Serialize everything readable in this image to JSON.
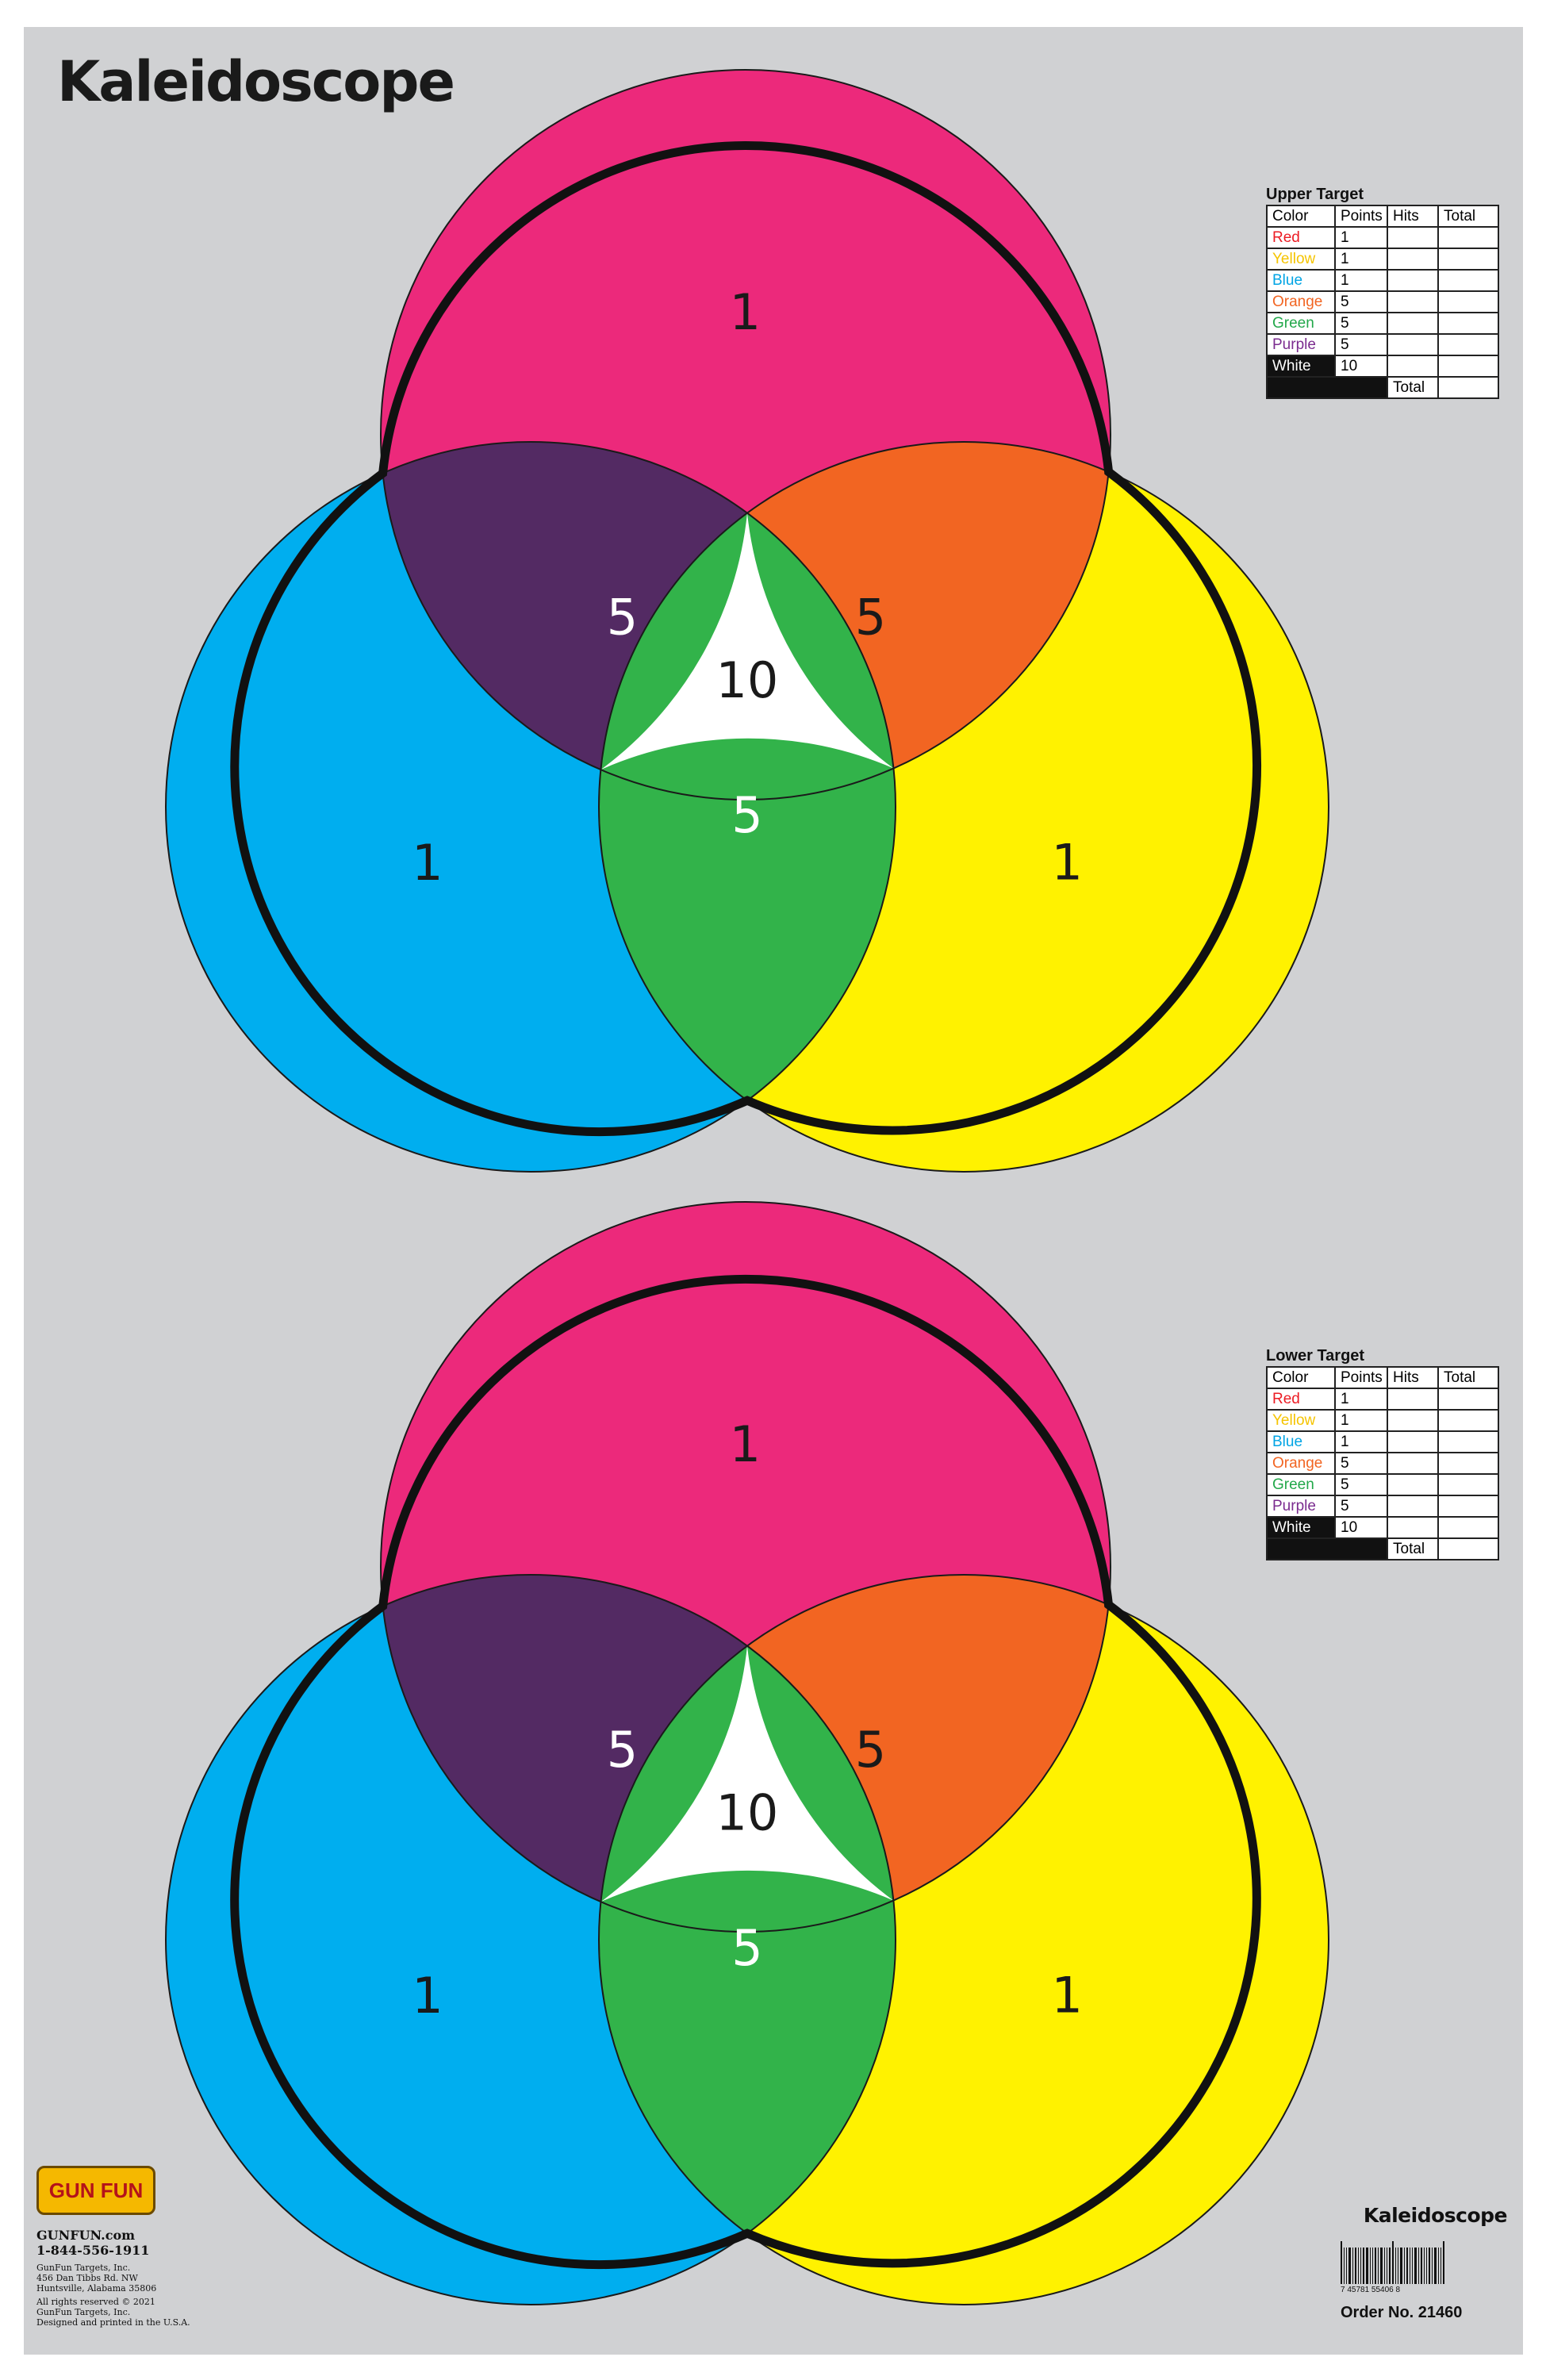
{
  "title": "Kaleidoscope",
  "colors": {
    "red": "#ec297b",
    "yellow": "#fff200",
    "blue": "#00aeef",
    "orange": "#f26522",
    "green": "#32b34a",
    "purple": "#532a63",
    "white": "#ffffff",
    "background": "#d0d1d3"
  },
  "targets": [
    {
      "name": "Upper Target",
      "regions": {
        "red": "1",
        "yellow": "1",
        "blue": "1",
        "orange": "5",
        "green": "5",
        "purple": "5",
        "white": "10"
      }
    },
    {
      "name": "Lower Target",
      "regions": {
        "red": "1",
        "yellow": "1",
        "blue": "1",
        "orange": "5",
        "green": "5",
        "purple": "5",
        "white": "10"
      }
    }
  ],
  "score_tables": [
    {
      "caption": "Upper Target",
      "headers": [
        "Color",
        "Points",
        "Hits",
        "Total"
      ],
      "rows": [
        {
          "color": "Red",
          "points": "1",
          "text_color": "#ec1c24"
        },
        {
          "color": "Yellow",
          "points": "1",
          "text_color": "#f5c400"
        },
        {
          "color": "Blue",
          "points": "1",
          "text_color": "#00a4e4"
        },
        {
          "color": "Orange",
          "points": "5",
          "text_color": "#f26522"
        },
        {
          "color": "Green",
          "points": "5",
          "text_color": "#22a84a"
        },
        {
          "color": "Purple",
          "points": "5",
          "text_color": "#7b2c8f"
        },
        {
          "color": "White",
          "points": "10",
          "text_color": "#ffffff"
        }
      ],
      "total_label": "Total"
    },
    {
      "caption": "Lower Target",
      "headers": [
        "Color",
        "Points",
        "Hits",
        "Total"
      ],
      "rows": [
        {
          "color": "Red",
          "points": "1",
          "text_color": "#ec1c24"
        },
        {
          "color": "Yellow",
          "points": "1",
          "text_color": "#f5c400"
        },
        {
          "color": "Blue",
          "points": "1",
          "text_color": "#00a4e4"
        },
        {
          "color": "Orange",
          "points": "5",
          "text_color": "#f26522"
        },
        {
          "color": "Green",
          "points": "5",
          "text_color": "#22a84a"
        },
        {
          "color": "Purple",
          "points": "5",
          "text_color": "#7b2c8f"
        },
        {
          "color": "White",
          "points": "10",
          "text_color": "#ffffff"
        }
      ],
      "total_label": "Total"
    }
  ],
  "brand": {
    "logo_text": "GUN FUN",
    "website": "GUNFUN.com",
    "phone": "1-844-556-1911",
    "company": "GunFun Targets, Inc.",
    "address1": "456 Dan Tibbs Rd. NW",
    "address2": "Huntsville, Alabama 35806",
    "rights": "All rights reserved © 2021",
    "company2": "GunFun Targets, Inc.",
    "printed": "Designed and printed in the U.S.A."
  },
  "footer": {
    "title": "Kaleidoscope",
    "barcode_digits": "7    45781    55406    8",
    "order_no": "Order No. 21460"
  }
}
